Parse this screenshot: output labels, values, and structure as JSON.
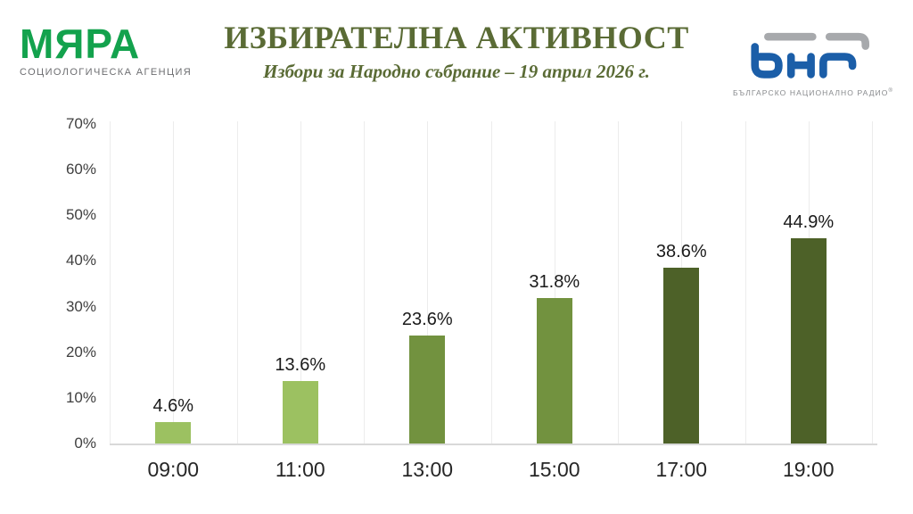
{
  "header": {
    "myara_logo": {
      "name": "МЯРА",
      "tagline": "СОЦИОЛОГИЧЕСКА АГЕНЦИЯ"
    },
    "title": "ИЗБИРАТЕЛНА АКТИВНОСТ",
    "subtitle": "Избори за Народно събрание – 19 април 2026 г.",
    "bnr_logo": {
      "name": "бнр",
      "caption": "БЪЛГАРСКО НАЦИОНАЛНО РАДИО"
    }
  },
  "colors": {
    "myara_green": "#13A24D",
    "title_olive": "#5A6B35",
    "bnr_blue": "#1B5EA8",
    "bnr_gray": "#A7A9AC",
    "bar_light_green": "#9CC161",
    "bar_medium_green": "#72923F",
    "bar_dark_green": "#4D6128",
    "gridline": "#ECECEC",
    "baseline": "#D9D9D9"
  },
  "chart_data": {
    "type": "bar",
    "title": "ИЗБИРАТЕЛНА АКТИВНОСТ",
    "subtitle": "Избори за Народно събрание – 19 април 2026 г.",
    "xlabel": "",
    "ylabel": "",
    "categories": [
      "09:00",
      "11:00",
      "13:00",
      "15:00",
      "17:00",
      "19:00"
    ],
    "values": [
      4.6,
      13.6,
      23.6,
      31.8,
      38.6,
      44.9
    ],
    "value_labels": [
      "4.6%",
      "13.6%",
      "23.6%",
      "31.8%",
      "38.6%",
      "44.9%"
    ],
    "bar_colors": [
      "#9CC161",
      "#9CC161",
      "#72923F",
      "#72923F",
      "#4D6128",
      "#4D6128"
    ],
    "ylim": [
      0,
      70
    ],
    "ytick_step": 10,
    "ytick_labels": [
      "0%",
      "10%",
      "20%",
      "30%",
      "40%",
      "50%",
      "60%",
      "70%"
    ],
    "grid": "vertical minor gridlines only, 2 per category",
    "legend": "none"
  }
}
